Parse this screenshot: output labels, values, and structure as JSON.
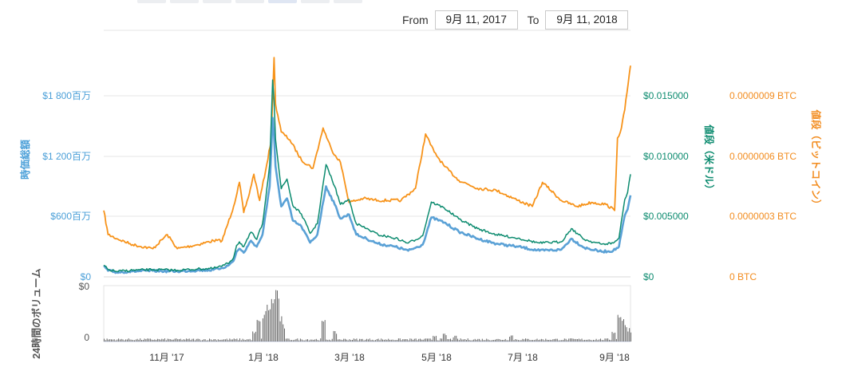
{
  "range_selector": {
    "tabs": [
      "",
      "",
      "",
      "",
      "",
      "",
      ""
    ],
    "from_label": "From",
    "from_value": "9月 11, 2017",
    "to_label": "To",
    "to_value": "9月 11, 2018"
  },
  "colors": {
    "market_cap": "#5aa1d6",
    "price_usd": "#0c8b6f",
    "price_btc": "#f7931a",
    "volume": "#666666",
    "grid": "#e6e6e6",
    "axis_left": "#4a9fd8",
    "axis_usd": "#0c8b6f",
    "axis_btc": "#f28c1f"
  },
  "chart_data": {
    "type": "line",
    "x_ticks": [
      "11月 '17",
      "1月 '18",
      "3月 '18",
      "5月 '18",
      "7月 '18",
      "9月 '18"
    ],
    "x_range": [
      "2017-09-11",
      "2018-09-11"
    ],
    "y_left": {
      "label": "時価総額",
      "ticks": [
        "$0",
        "$600百万",
        "$1 200百万",
        "$1 800百万"
      ],
      "range": [
        0,
        1800
      ]
    },
    "y_usd": {
      "label": "値段（米ドル）",
      "ticks": [
        "$0",
        "$0.005000",
        "$0.010000",
        "$0.015000"
      ],
      "range": [
        0,
        0.015
      ]
    },
    "y_btc": {
      "label": "値段（ビットコイン）",
      "ticks": [
        "0 BTC",
        "0.0000003 BTC",
        "0.0000006 BTC",
        "0.0000009 BTC"
      ],
      "range": [
        0,
        9e-07
      ]
    },
    "volume_axis": {
      "label": "24時間のボリューム",
      "ticks": [
        "$0",
        "0"
      ]
    },
    "series": [
      {
        "name": "時価総額",
        "color": "#5aa1d6",
        "axis": "left",
        "x": [
          "2017-09-11",
          "2017-09-14",
          "2017-09-20",
          "2017-10-01",
          "2017-10-15",
          "2017-11-01",
          "2017-11-15",
          "2017-11-26",
          "2017-12-02",
          "2017-12-06",
          "2017-12-10",
          "2017-12-12",
          "2017-12-14",
          "2017-12-17",
          "2017-12-20",
          "2017-12-22",
          "2017-12-26",
          "2017-12-30",
          "2018-01-02",
          "2018-01-04",
          "2018-01-06",
          "2018-01-07",
          "2018-01-08",
          "2018-01-10",
          "2018-01-12",
          "2018-01-16",
          "2018-01-20",
          "2018-01-26",
          "2018-02-01",
          "2018-02-06",
          "2018-02-12",
          "2018-02-18",
          "2018-02-22",
          "2018-02-28",
          "2018-03-05",
          "2018-03-12",
          "2018-03-20",
          "2018-04-01",
          "2018-04-10",
          "2018-04-20",
          "2018-04-26",
          "2018-05-05",
          "2018-05-15",
          "2018-05-28",
          "2018-06-10",
          "2018-06-25",
          "2018-07-10",
          "2018-07-25",
          "2018-08-01",
          "2018-08-10",
          "2018-08-22",
          "2018-08-30",
          "2018-09-03",
          "2018-09-07",
          "2018-09-09",
          "2018-09-11"
        ],
        "values": [
          110,
          60,
          45,
          55,
          60,
          55,
          65,
          70,
          90,
          110,
          160,
          250,
          280,
          240,
          310,
          360,
          300,
          420,
          700,
          900,
          1580,
          1400,
          1100,
          900,
          700,
          780,
          560,
          500,
          340,
          420,
          900,
          720,
          580,
          620,
          420,
          380,
          330,
          300,
          260,
          320,
          590,
          540,
          450,
          380,
          330,
          300,
          260,
          270,
          380,
          290,
          250,
          260,
          300,
          610,
          670,
          810
        ]
      },
      {
        "name": "値段（米ドル）",
        "color": "#0c8b6f",
        "axis": "usd",
        "x": [
          "2017-09-11",
          "2017-09-14",
          "2017-09-20",
          "2017-10-01",
          "2017-10-15",
          "2017-11-01",
          "2017-11-15",
          "2017-11-26",
          "2017-12-02",
          "2017-12-06",
          "2017-12-10",
          "2017-12-12",
          "2017-12-14",
          "2017-12-17",
          "2017-12-20",
          "2017-12-22",
          "2017-12-26",
          "2017-12-30",
          "2018-01-02",
          "2018-01-04",
          "2018-01-06",
          "2018-01-07",
          "2018-01-08",
          "2018-01-10",
          "2018-01-12",
          "2018-01-16",
          "2018-01-20",
          "2018-01-26",
          "2018-02-01",
          "2018-02-06",
          "2018-02-12",
          "2018-02-18",
          "2018-02-22",
          "2018-02-28",
          "2018-03-05",
          "2018-03-12",
          "2018-03-20",
          "2018-04-01",
          "2018-04-10",
          "2018-04-20",
          "2018-04-26",
          "2018-05-05",
          "2018-05-15",
          "2018-05-28",
          "2018-06-10",
          "2018-06-25",
          "2018-07-10",
          "2018-07-25",
          "2018-08-01",
          "2018-08-10",
          "2018-08-22",
          "2018-08-30",
          "2018-09-03",
          "2018-09-07",
          "2018-09-09",
          "2018-09-11"
        ],
        "values": [
          0.00097,
          0.0006,
          0.00045,
          0.00055,
          0.0006,
          0.00055,
          0.00065,
          0.0007,
          0.0009,
          0.0011,
          0.0016,
          0.0026,
          0.0029,
          0.0025,
          0.0032,
          0.0037,
          0.0031,
          0.0044,
          0.0073,
          0.0093,
          0.0163,
          0.0146,
          0.0114,
          0.0093,
          0.0073,
          0.0081,
          0.0059,
          0.0052,
          0.0036,
          0.0044,
          0.0093,
          0.0075,
          0.006,
          0.0064,
          0.0044,
          0.004,
          0.0035,
          0.0032,
          0.0028,
          0.0034,
          0.0062,
          0.0057,
          0.0048,
          0.004,
          0.0035,
          0.0032,
          0.0028,
          0.0029,
          0.004,
          0.0031,
          0.0027,
          0.0028,
          0.0032,
          0.0064,
          0.007,
          0.0085
        ]
      },
      {
        "name": "値段（ビットコイン）",
        "color": "#f7931a",
        "axis": "btc",
        "x": [
          "2017-09-11",
          "2017-09-14",
          "2017-09-20",
          "2017-10-01",
          "2017-10-15",
          "2017-10-25",
          "2017-11-01",
          "2017-11-15",
          "2017-11-26",
          "2017-12-02",
          "2017-12-10",
          "2017-12-14",
          "2017-12-17",
          "2017-12-20",
          "2017-12-24",
          "2017-12-28",
          "2018-01-02",
          "2018-01-05",
          "2018-01-07",
          "2018-01-08",
          "2018-01-12",
          "2018-01-18",
          "2018-01-26",
          "2018-02-03",
          "2018-02-10",
          "2018-02-16",
          "2018-02-22",
          "2018-02-28",
          "2018-03-10",
          "2018-03-20",
          "2018-04-05",
          "2018-04-15",
          "2018-04-22",
          "2018-04-28",
          "2018-05-05",
          "2018-05-15",
          "2018-05-28",
          "2018-06-10",
          "2018-06-25",
          "2018-07-05",
          "2018-07-12",
          "2018-07-25",
          "2018-08-05",
          "2018-08-15",
          "2018-08-25",
          "2018-08-31",
          "2018-09-02",
          "2018-09-04",
          "2018-09-07",
          "2018-09-11"
        ],
        "values": [
          3.3e-07,
          2.1e-07,
          1.9e-07,
          1.6e-07,
          1.4e-07,
          2.1e-07,
          1.4e-07,
          1.6e-07,
          1.8e-07,
          1.8e-07,
          3.5e-07,
          4.7e-07,
          3.2e-07,
          3.9e-07,
          5.1e-07,
          3.8e-07,
          5.6e-07,
          6.8e-07,
          1.09e-06,
          8.6e-07,
          7.2e-07,
          6.8e-07,
          5.8e-07,
          5.4e-07,
          7.4e-07,
          6.3e-07,
          5.7e-07,
          3.7e-07,
          3.9e-07,
          3.8e-07,
          3.8e-07,
          4.4e-07,
          7.1e-07,
          6.2e-07,
          5.5e-07,
          4.8e-07,
          4.4e-07,
          4.3e-07,
          3.8e-07,
          3.5e-07,
          4.7e-07,
          3.8e-07,
          3.5e-07,
          3.7e-07,
          3.6e-07,
          3.3e-07,
          6.9e-07,
          7.2e-07,
          8.3e-07,
          1.05e-06
        ]
      },
      {
        "name": "24時間のボリューム",
        "color": "#666666",
        "axis": "volume",
        "x": [
          "2017-12-24",
          "2017-12-27",
          "2017-12-31",
          "2018-01-03",
          "2018-01-05",
          "2018-01-06",
          "2018-01-08",
          "2018-01-09",
          "2018-01-11",
          "2018-01-13",
          "2018-02-10",
          "2018-02-18",
          "2018-04-28",
          "2018-05-05",
          "2018-05-12",
          "2018-06-20",
          "2018-08-30",
          "2018-09-03",
          "2018-09-05",
          "2018-09-07",
          "2018-09-09",
          "2018-09-11"
        ],
        "values": [
          0.18,
          0.4,
          0.55,
          0.7,
          0.78,
          0.95,
          1.0,
          0.85,
          0.45,
          0.3,
          0.38,
          0.18,
          0.12,
          0.14,
          0.1,
          0.12,
          0.2,
          0.55,
          0.45,
          0.3,
          0.25,
          0.22
        ]
      }
    ]
  }
}
